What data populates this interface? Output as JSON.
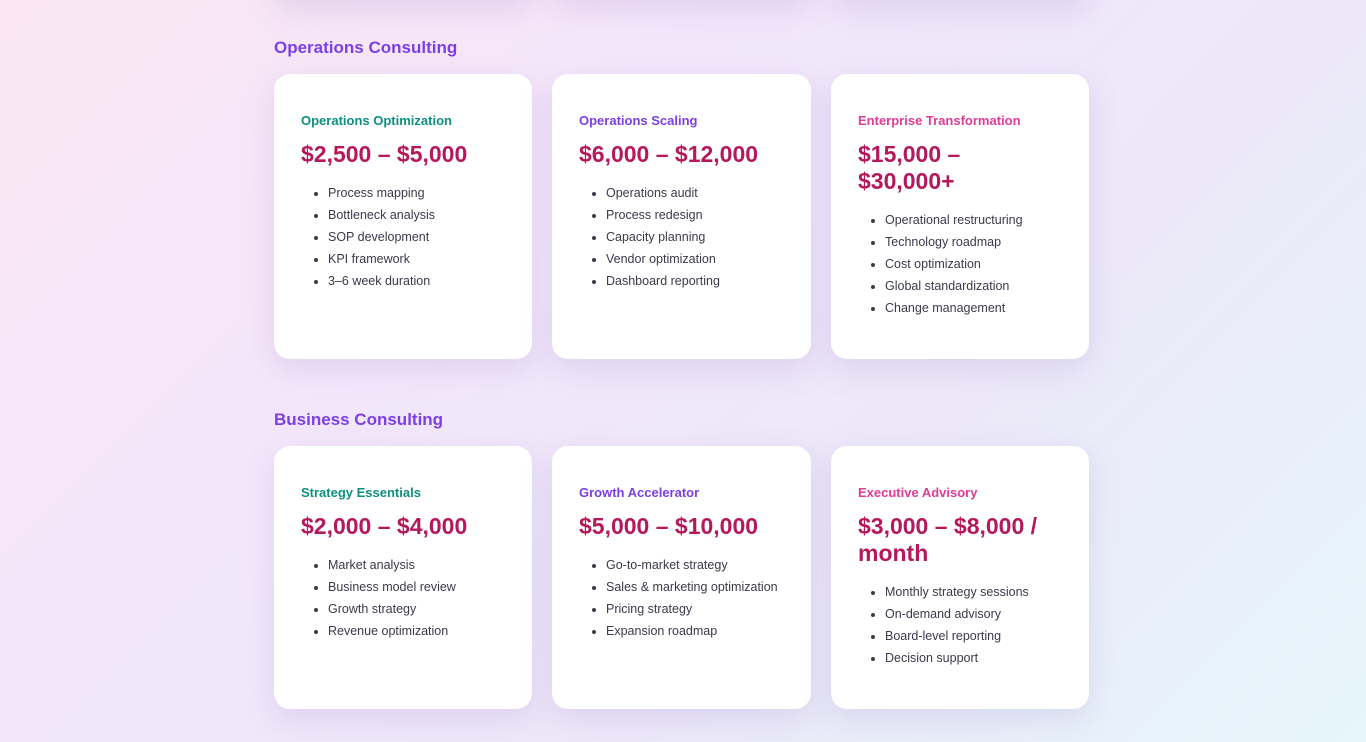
{
  "sections": [
    {
      "title": "Operations Consulting",
      "cards": [
        {
          "name": "Operations Optimization",
          "price": "$2,500 – $5,000",
          "features": [
            "Process mapping",
            "Bottleneck analysis",
            "SOP development",
            "KPI framework",
            "3–6 week duration"
          ]
        },
        {
          "name": "Operations Scaling",
          "price": "$6,000 – $12,000",
          "features": [
            "Operations audit",
            "Process redesign",
            "Capacity planning",
            "Vendor optimization",
            "Dashboard reporting"
          ]
        },
        {
          "name": "Enterprise Transformation",
          "price": "$15,000 – $30,000+",
          "features": [
            "Operational restructuring",
            "Technology roadmap",
            "Cost optimization",
            "Global standardization",
            "Change management"
          ]
        }
      ]
    },
    {
      "title": "Business Consulting",
      "cards": [
        {
          "name": "Strategy Essentials",
          "price": "$2,000 – $4,000",
          "features": [
            "Market analysis",
            "Business model review",
            "Growth strategy",
            "Revenue optimization"
          ]
        },
        {
          "name": "Growth Accelerator",
          "price": "$5,000 – $10,000",
          "features": [
            "Go-to-market strategy",
            "Sales & marketing optimization",
            "Pricing strategy",
            "Expansion roadmap"
          ]
        },
        {
          "name": "Executive Advisory",
          "price": "$3,000 – $8,000 / month",
          "features": [
            "Monthly strategy sessions",
            "On-demand advisory",
            "Board-level reporting",
            "Decision support"
          ]
        }
      ]
    }
  ],
  "colors": {
    "section_title": "#7b3fe4",
    "tier_1": "#0f8f7e",
    "tier_2": "#7b3fe4",
    "tier_3": "#e03c95",
    "price": "#b5195c"
  }
}
